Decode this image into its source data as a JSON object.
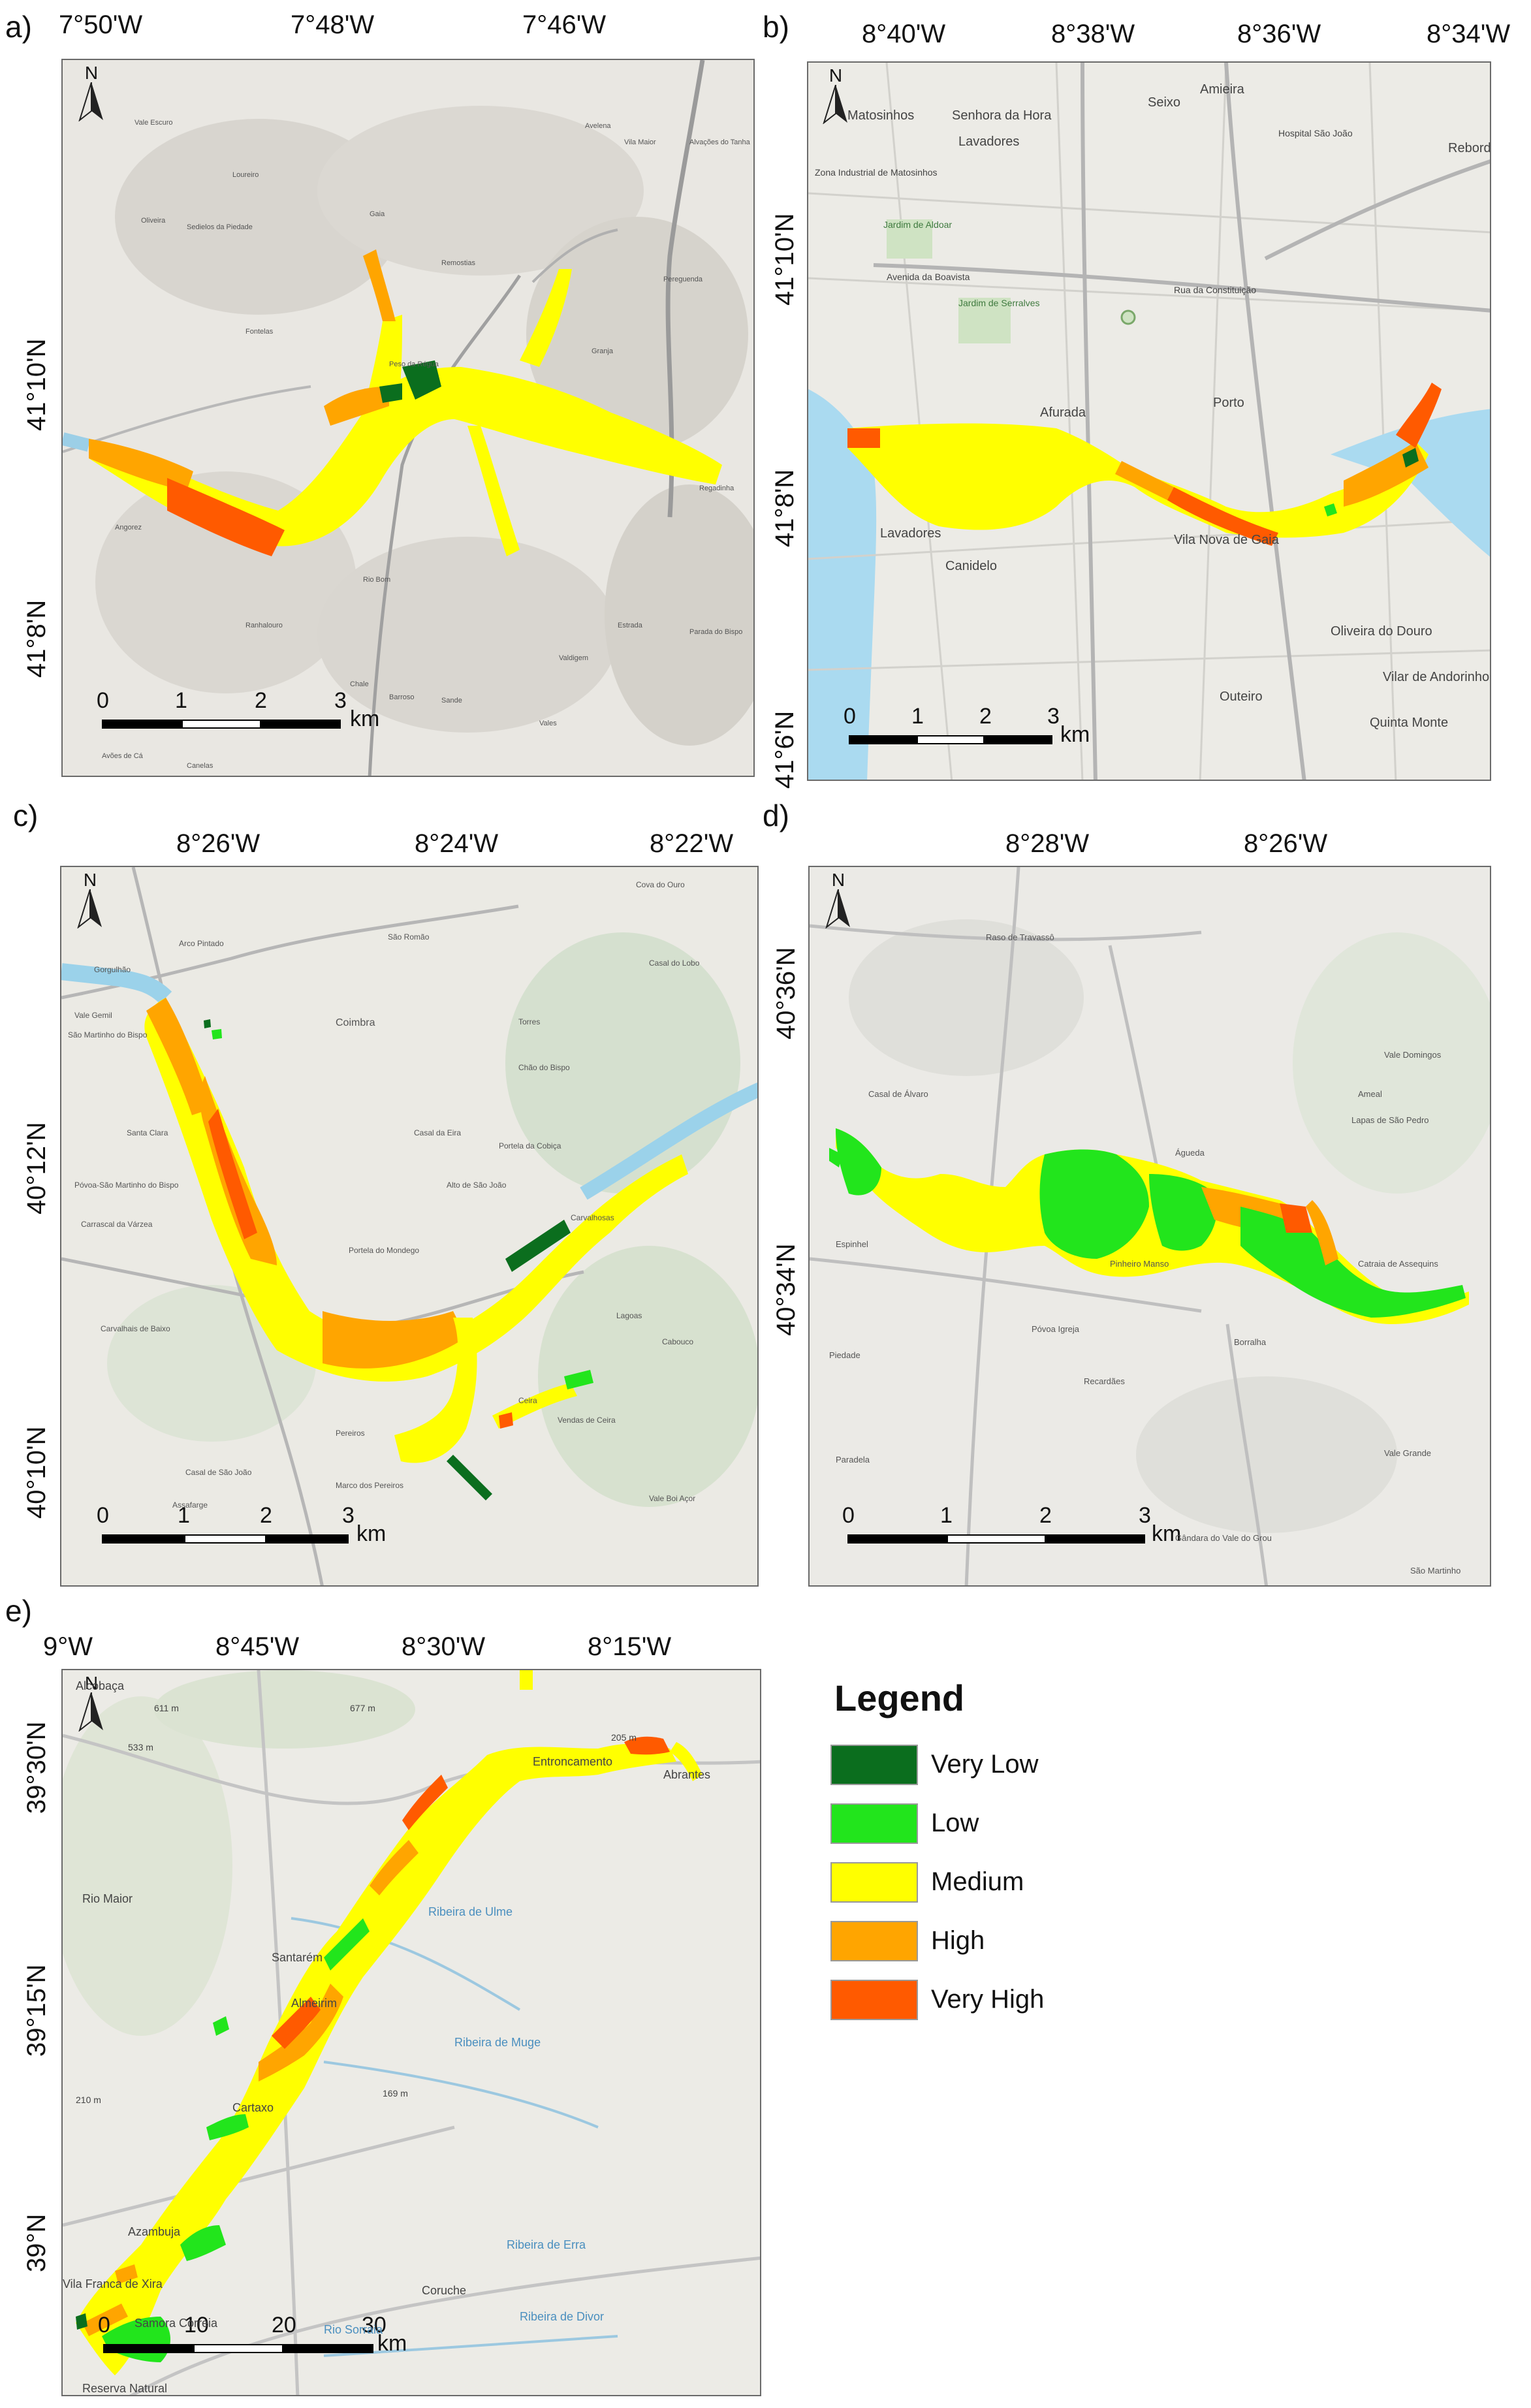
{
  "panels": [
    {
      "letter": "a)",
      "top_ticks": [
        "7°50'W",
        "7°48'W",
        "7°46'W"
      ],
      "left_ticks": [
        "41°10'N",
        "41°8'N"
      ],
      "scale": {
        "labels": [
          "0",
          "1",
          "2",
          "3"
        ],
        "unit": "km"
      },
      "places": [
        "Vale Escuro",
        "Avelena",
        "Vila Maior",
        "Loureiro",
        "Oliveira",
        "Gaia",
        "Remostias",
        "Fontelas",
        "Pereguenda",
        "Peso da Régua",
        "Granja",
        "Angorez",
        "Rio Bom",
        "Ranhalouro",
        "Estrada",
        "Valdigem",
        "Parada do Bispo",
        "Chale",
        "Barroso",
        "Sande",
        "Vales",
        "Avões de Cá",
        "Canelas",
        "Regadinha",
        "Alvações do Tanha",
        "Sedielos da Piedade"
      ]
    },
    {
      "letter": "b)",
      "top_ticks": [
        "8°40'W",
        "8°38'W",
        "8°36'W",
        "8°34'W"
      ],
      "left_ticks": [
        "41°10'N",
        "41°8'N",
        "41°6'N"
      ],
      "scale": {
        "labels": [
          "0",
          "1",
          "2",
          "3"
        ],
        "unit": "km"
      },
      "places": [
        "Matosinhos",
        "Senhora da Hora",
        "Seixo",
        "Amieira",
        "Lavadores",
        "Avenida da Boavista",
        "Rua da Constituição",
        "Afurada",
        "Porto",
        "Vila Nova de Gaia",
        "Lavadores",
        "Canidelo",
        "Oliveira do Douro",
        "Outeiro",
        "Vilar de Andorinho",
        "Quinta Monte",
        "Jardim de Aldoar",
        "Jardim de Serralves",
        "Zona Industrial de Matosinhos",
        "Hospital São João",
        "Rebordosa"
      ]
    },
    {
      "letter": "c)",
      "top_ticks": [
        "8°26'W",
        "8°24'W",
        "8°22'W"
      ],
      "left_ticks": [
        "40°12'N",
        "40°10'N"
      ],
      "scale": {
        "labels": [
          "0",
          "1",
          "2",
          "3"
        ],
        "unit": "km"
      },
      "places": [
        "Arco Pintado",
        "São Romão",
        "Cova do Ouro",
        "Gorgulhão",
        "Vale Gemil",
        "São Martinho do Bispo",
        "Coimbra",
        "Torres",
        "Casal do Lobo",
        "Chão do Bispo",
        "Santa Clara",
        "Casal da Eira",
        "Portela da Cobiça",
        "Póvoa-São Martinho do Bispo",
        "Carrascal da Várzea",
        "Alto de São João",
        "Carvalhosas",
        "Portela do Mondego",
        "Carvalhais de Baixo",
        "Pereiros",
        "Ceira",
        "Vendas de Ceira",
        "Lagoas",
        "Cabouco",
        "Casal de São João",
        "Assafarge",
        "Marco dos Pereiros",
        "Vale Boi Açor"
      ]
    },
    {
      "letter": "d)",
      "top_ticks": [
        "8°28'W",
        "8°26'W"
      ],
      "left_ticks": [
        "40°36'N",
        "40°34'N"
      ],
      "scale": {
        "labels": [
          "0",
          "1",
          "2",
          "3"
        ],
        "unit": "km"
      },
      "places": [
        "Raso de Travassô",
        "Casal de Álvaro",
        "Vale Domingos",
        "Ameal",
        "Lapas de São Pedro",
        "Águeda",
        "Espinhel",
        "Pinheiro Manso",
        "Catraia de Assequins",
        "Póvoa Igreja",
        "Borralha",
        "Recardães",
        "Piedade",
        "Paradela",
        "Vale Grande",
        "Gândara do Vale do Grou",
        "São Martinho"
      ]
    },
    {
      "letter": "e)",
      "top_ticks": [
        "9°W",
        "8°45'W",
        "8°30'W",
        "8°15'W"
      ],
      "left_ticks": [
        "39°30'N",
        "39°15'N",
        "39°N"
      ],
      "scale": {
        "labels": [
          "0",
          "10",
          "20",
          "30"
        ],
        "unit": "km"
      },
      "places": [
        "Alcobaça",
        "Entroncamento",
        "Abrantes",
        "Rio Maior",
        "Santarém",
        "Ribeira de Ulme",
        "Ribeira de Muge",
        "Almeirim",
        "Cartaxo",
        "Azambuja",
        "Vila Franca de Xira",
        "Coruche",
        "Samora Correia",
        "Rio Sorraia",
        "Ribeira de Divor",
        "Ribeira de Erra",
        "Reserva Natural",
        "611 m",
        "533 m",
        "677 m",
        "205 m",
        "210 m",
        "169 m"
      ]
    }
  ],
  "legend": {
    "title": "Legend",
    "classes": [
      {
        "label": "Very Low",
        "color": "#0b6e1e"
      },
      {
        "label": "Low",
        "color": "#22e51c"
      },
      {
        "label": "Medium",
        "color": "#ffff00"
      },
      {
        "label": "High",
        "color": "#ffa500"
      },
      {
        "label": "Very High",
        "color": "#ff5a00"
      }
    ]
  },
  "north_label": "N"
}
